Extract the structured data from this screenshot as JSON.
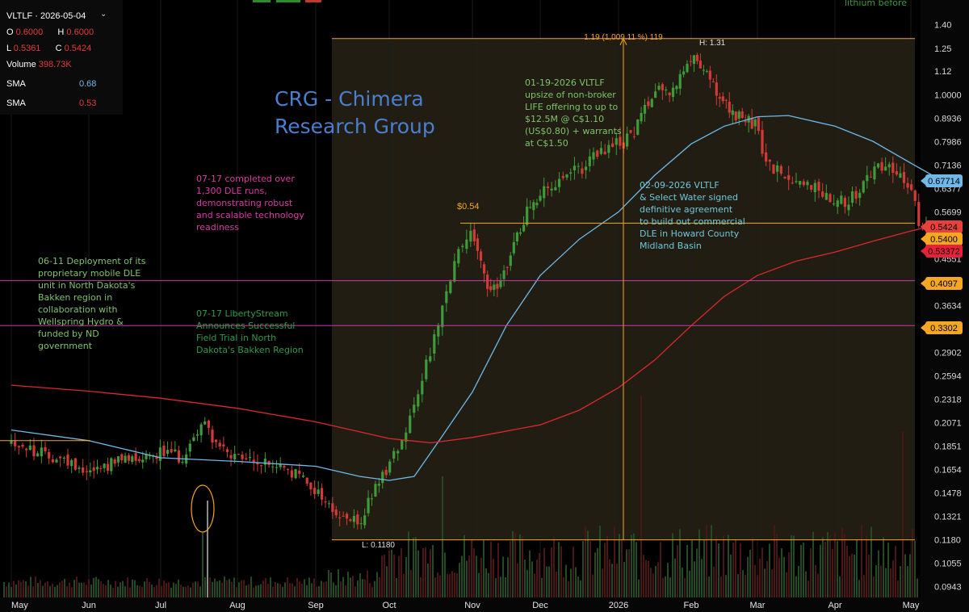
{
  "legend": {
    "symbol_date": "VLTLF · 2026-05-04",
    "o_label": "O",
    "o_value": "0.6000",
    "h_label": "H",
    "h_value": "0.6000",
    "l_label": "L",
    "l_value": "0.5361",
    "c_label": "C",
    "c_value": "0.5424",
    "volume_label": "Volume",
    "volume_value": "398.73K",
    "sma1_label": "SMA",
    "sma1_value": "0.68",
    "sma2_label": "SMA",
    "sma2_value": "0.53"
  },
  "watermark": {
    "line1": "CRG - Chimera",
    "line2": "Research Group"
  },
  "top_right_text": "lithium before",
  "annotations": {
    "a1": [
      "06-11 Deployment of its",
      "proprietary mobile DLE",
      "unit in North Dakota's",
      "Bakken region in",
      "collaboration with",
      "Wellspring Hydro &",
      "funded by ND",
      "government"
    ],
    "a2": [
      "07-17 completed over",
      "1,300 DLE runs,",
      "demonstrating robust",
      "and scalable technology",
      "readiness"
    ],
    "a3": [
      "07-17 LibertyStream",
      "Announces Successful",
      "Field Trial in North",
      "Dakota's Bakken Region"
    ],
    "a4": [
      "01-19-2026 VLTLF",
      "upsize of non-broker",
      "LIFE offering to up to",
      "$12.5M @ C$1.10",
      "(US$0.80) + warrants",
      "at C$1.50"
    ],
    "a5": [
      "02-09-2026 VLTLF",
      "& Select Water signed",
      "definitive agreement",
      "to build out commercial",
      "DLE in Howard County",
      "Midland Basin"
    ]
  },
  "chart_data": {
    "type": "candlestick",
    "x_ticks": [
      "May",
      "Jun",
      "Jul",
      "Aug",
      "Sep",
      "Oct",
      "Nov",
      "Dec",
      "2026",
      "Feb",
      "Mar",
      "Apr",
      "May"
    ],
    "y_ticks": [
      "1.40",
      "1.25",
      "1.12",
      "1.0000",
      "0.8936",
      "0.7986",
      "0.7136",
      "0.6377",
      "0.5699",
      "0.4551",
      "0.3634",
      "0.2902",
      "0.2594",
      "0.2318",
      "0.2071",
      "0.1851",
      "0.1654",
      "0.1478",
      "0.1321",
      "0.1180",
      "0.1055",
      "0.0943"
    ],
    "y_scale": "log",
    "y_range": [
      0.0895,
      1.47
    ],
    "price_tags": [
      {
        "value": "0.67714",
        "color": "#6fb8e8"
      },
      {
        "value": "0.5424",
        "color": "#e8403a"
      },
      {
        "value": "0.5400",
        "color": "#f5a623"
      },
      {
        "value": "0.53372",
        "color": "#e8203a"
      },
      {
        "value": "0.4097",
        "color": "#f5a623"
      },
      {
        "value": "0.3302",
        "color": "#f5a623"
      }
    ],
    "measure_label": "1.19 (1,009.11 %) 119",
    "high_label": "H: 1.31",
    "low_label": "L: 0.1180",
    "level_label": "$0.54",
    "horizontal_levels": [
      {
        "value": 0.54,
        "color": "#f5a623"
      },
      {
        "value": 0.4097,
        "color": "#c83aa8"
      },
      {
        "value": 0.3302,
        "color": "#c83aa8"
      },
      {
        "value": 1.31,
        "color": "#f5a623"
      },
      {
        "value": 0.118,
        "color": "#f5a623"
      }
    ],
    "series": [
      {
        "name": "SMA",
        "value": 0.68,
        "color": "#6fb8e8"
      },
      {
        "name": "SMA",
        "value": 0.53,
        "color": "#d9282f"
      }
    ],
    "colors": {
      "up": "#3f9a3a",
      "down": "#d43a35",
      "box": "#3c3520"
    }
  }
}
